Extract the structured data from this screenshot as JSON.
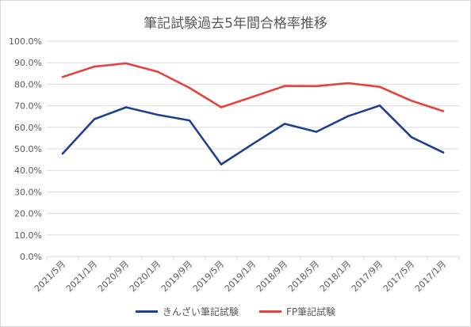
{
  "chart_data": {
    "type": "line",
    "title": "筆記試験過去5年間合格率推移",
    "xlabel": "",
    "ylabel": "",
    "categories": [
      "2021/5月",
      "2021/1月",
      "2020/9月",
      "2020/1月",
      "2019/9月",
      "2019/5月",
      "2019/1月",
      "2018/9月",
      "2018/5月",
      "2018/1月",
      "2017/9月",
      "2017/5月",
      "2017/1月"
    ],
    "ylim": [
      0,
      1.0
    ],
    "y_ticks": [
      "0.0%",
      "10.0%",
      "20.0%",
      "30.0%",
      "40.0%",
      "50.0%",
      "60.0%",
      "70.0%",
      "80.0%",
      "90.0%",
      "100.0%"
    ],
    "grid": true,
    "legend_position": "bottom",
    "series": [
      {
        "name": "きんざい筆記試験",
        "color": "#1f3f8f",
        "values": [
          0.478,
          0.638,
          0.693,
          0.658,
          0.632,
          0.428,
          0.523,
          0.616,
          0.579,
          0.652,
          0.701,
          0.554,
          0.483
        ]
      },
      {
        "name": "FP筆記試験",
        "color": "#e8403a",
        "values": [
          0.834,
          0.882,
          0.897,
          0.858,
          0.783,
          0.693,
          0.742,
          0.792,
          0.791,
          0.805,
          0.788,
          0.723,
          0.675
        ]
      }
    ]
  }
}
